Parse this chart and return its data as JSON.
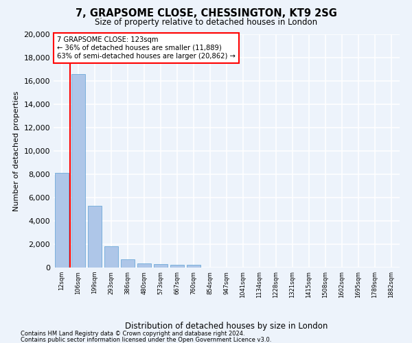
{
  "title": "7, GRAPSOME CLOSE, CHESSINGTON, KT9 2SG",
  "subtitle": "Size of property relative to detached houses in London",
  "xlabel": "Distribution of detached houses by size in London",
  "ylabel": "Number of detached properties",
  "categories": [
    "12sqm",
    "106sqm",
    "199sqm",
    "293sqm",
    "386sqm",
    "480sqm",
    "573sqm",
    "667sqm",
    "760sqm",
    "854sqm",
    "947sqm",
    "1041sqm",
    "1134sqm",
    "1228sqm",
    "1321sqm",
    "1415sqm",
    "1508sqm",
    "1602sqm",
    "1695sqm",
    "1789sqm",
    "1882sqm"
  ],
  "values": [
    8100,
    16600,
    5300,
    1850,
    680,
    380,
    290,
    220,
    210,
    0,
    0,
    0,
    0,
    0,
    0,
    0,
    0,
    0,
    0,
    0,
    0
  ],
  "bar_color": "#aec6e8",
  "bar_edge_color": "#5a9fd4",
  "annotation_line1": "7 GRAPSOME CLOSE: 123sqm",
  "annotation_line2": "← 36% of detached houses are smaller (11,889)",
  "annotation_line3": "63% of semi-detached houses are larger (20,862) →",
  "property_line_x": 1.5,
  "ylim_max": 20000,
  "yticks": [
    0,
    2000,
    4000,
    6000,
    8000,
    10000,
    12000,
    14000,
    16000,
    18000,
    20000
  ],
  "bg_color": "#edf3fb",
  "grid_color": "#ffffff",
  "footnote1": "Contains HM Land Registry data © Crown copyright and database right 2024.",
  "footnote2": "Contains public sector information licensed under the Open Government Licence v3.0."
}
